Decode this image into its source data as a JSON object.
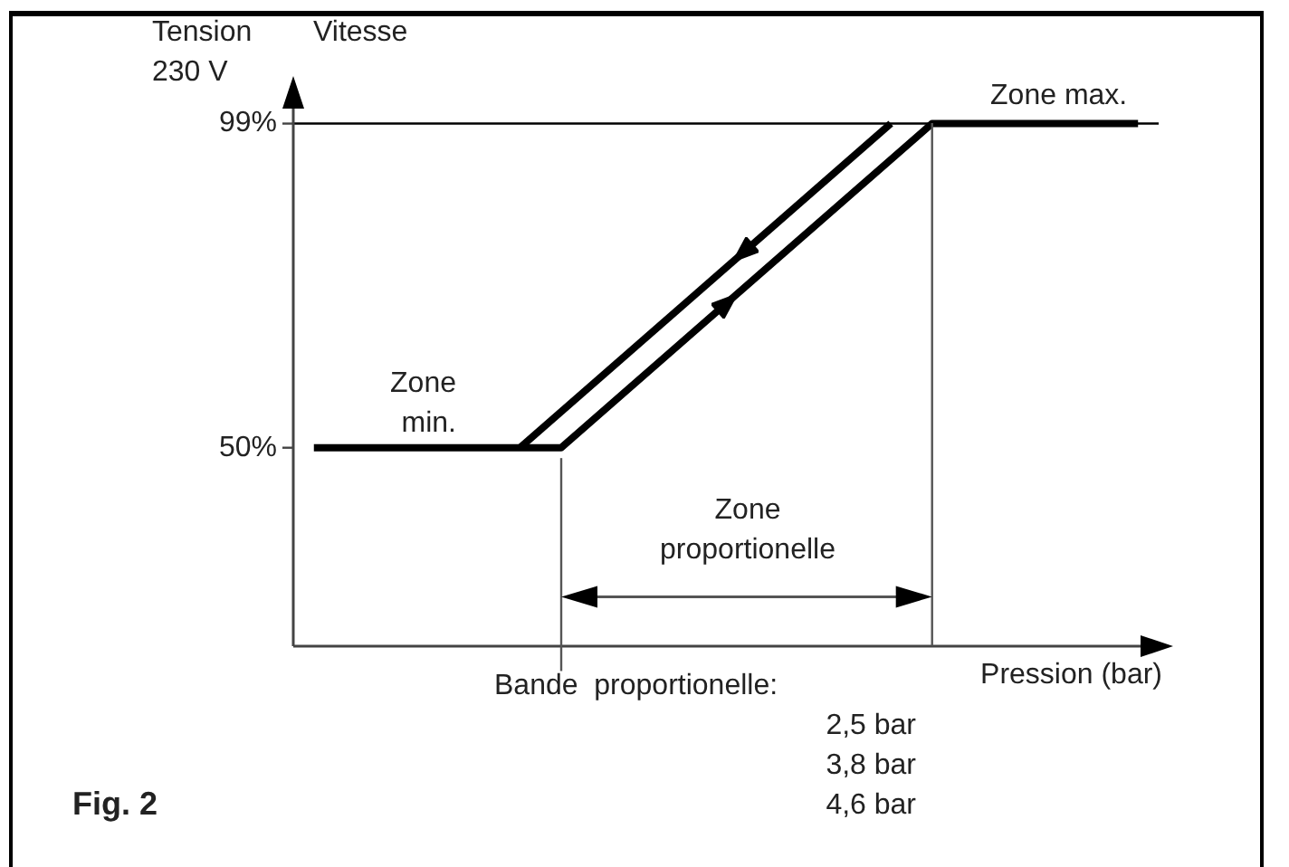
{
  "chart_data": {
    "type": "line",
    "xlabel": "Pression (bar)",
    "ylabel": "Vitesse",
    "categories": [
      null,
      null,
      null,
      null,
      null,
      null,
      null,
      null,
      null,
      null,
      null,
      null,
      null,
      null,
      null,
      null,
      null,
      null,
      null,
      null,
      null
    ],
    "ylim": [
      20,
      104
    ],
    "yticks": [
      {
        "value": 50,
        "label": "50%"
      },
      {
        "value": 99,
        "label": "99%"
      }
    ],
    "grid": false,
    "legend": false,
    "marker": "none",
    "line_style": "solid",
    "series": [
      {
        "color": "#000000",
        "values": [
          50,
          null,
          null,
          null,
          null,
          null,
          50,
          null,
          null,
          null,
          null,
          null,
          null,
          null,
          null,
          99,
          null,
          null,
          null,
          null,
          99
        ]
      },
      {
        "color": "#000000",
        "values": [
          null,
          null,
          null,
          null,
          null,
          50,
          null,
          null,
          null,
          null,
          null,
          null,
          null,
          null,
          99,
          null,
          null,
          null,
          null,
          null,
          null
        ]
      }
    ],
    "ref_lines": [
      {
        "axis": "y",
        "value": 99,
        "color": "#000000"
      }
    ],
    "annotations": [
      "Tension\n230 V",
      "Zone max.",
      "Zone\nmin.",
      "Zone\nproportionelle",
      "Bande  proportionelle:",
      "2,5 bar",
      "3,8 bar",
      "4,6 bar",
      "Fig. 2"
    ]
  }
}
